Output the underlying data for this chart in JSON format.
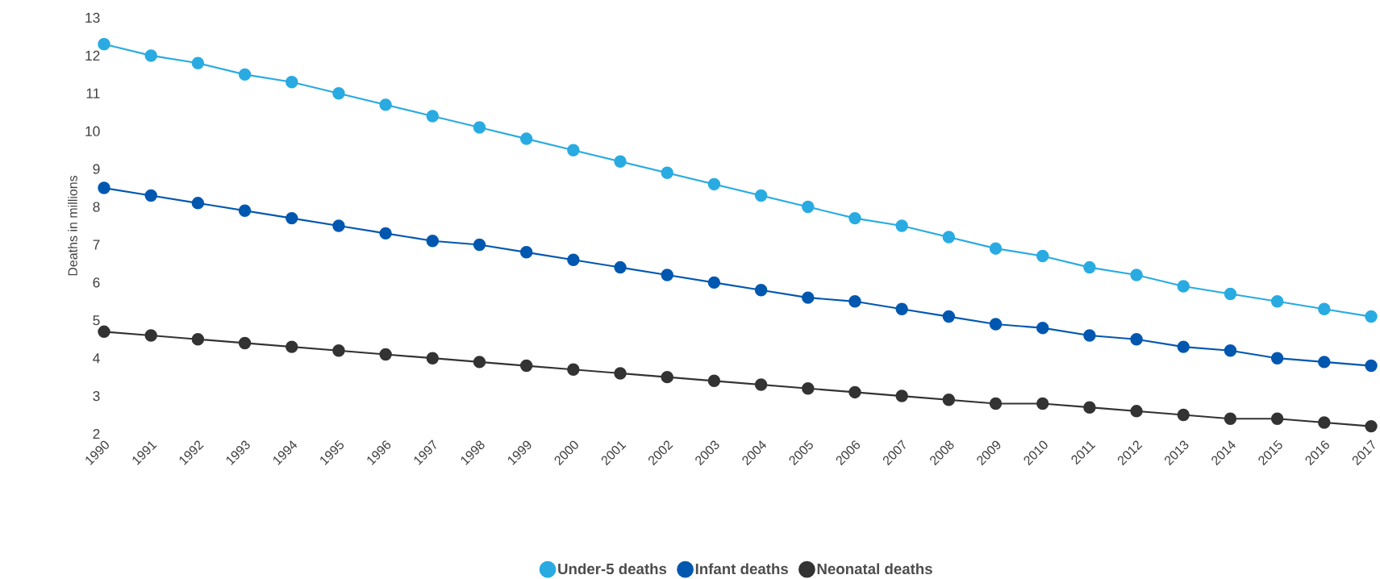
{
  "chart_data": {
    "type": "line",
    "ylabel": "Deaths in millions",
    "categories": [
      "1990",
      "1991",
      "1992",
      "1993",
      "1994",
      "1995",
      "1996",
      "1997",
      "1998",
      "1999",
      "2000",
      "2001",
      "2002",
      "2003",
      "2004",
      "2005",
      "2006",
      "2007",
      "2008",
      "2009",
      "2010",
      "2011",
      "2012",
      "2013",
      "2014",
      "2015",
      "2016",
      "2017"
    ],
    "series": [
      {
        "name": "Under-5 deaths",
        "color": "#29abe2",
        "values": [
          12.3,
          12.0,
          11.8,
          11.5,
          11.3,
          11.0,
          10.7,
          10.4,
          10.1,
          9.8,
          9.5,
          9.2,
          8.9,
          8.6,
          8.3,
          8.0,
          7.7,
          7.5,
          7.2,
          6.9,
          6.7,
          6.4,
          6.2,
          5.9,
          5.7,
          5.5,
          5.3,
          5.1
        ]
      },
      {
        "name": "Infant deaths",
        "color": "#0057b0",
        "values": [
          8.5,
          8.3,
          8.1,
          7.9,
          7.7,
          7.5,
          7.3,
          7.1,
          7.0,
          6.8,
          6.6,
          6.4,
          6.2,
          6.0,
          5.8,
          5.6,
          5.5,
          5.3,
          5.1,
          4.9,
          4.8,
          4.6,
          4.5,
          4.3,
          4.2,
          4.0,
          3.9,
          3.8
        ]
      },
      {
        "name": "Neonatal deaths",
        "color": "#333333",
        "values": [
          4.7,
          4.6,
          4.5,
          4.4,
          4.3,
          4.2,
          4.1,
          4.0,
          3.9,
          3.8,
          3.7,
          3.6,
          3.5,
          3.4,
          3.3,
          3.2,
          3.1,
          3.0,
          2.9,
          2.8,
          2.8,
          2.7,
          2.6,
          2.5,
          2.4,
          2.4,
          2.3,
          2.2
        ]
      }
    ],
    "ylim": [
      2,
      13
    ],
    "yticks": [
      2,
      3,
      4,
      5,
      6,
      7,
      8,
      9,
      10,
      11,
      12,
      13
    ],
    "grid": false,
    "legend": "bottom",
    "marker": "circle",
    "line_style": "solid"
  }
}
